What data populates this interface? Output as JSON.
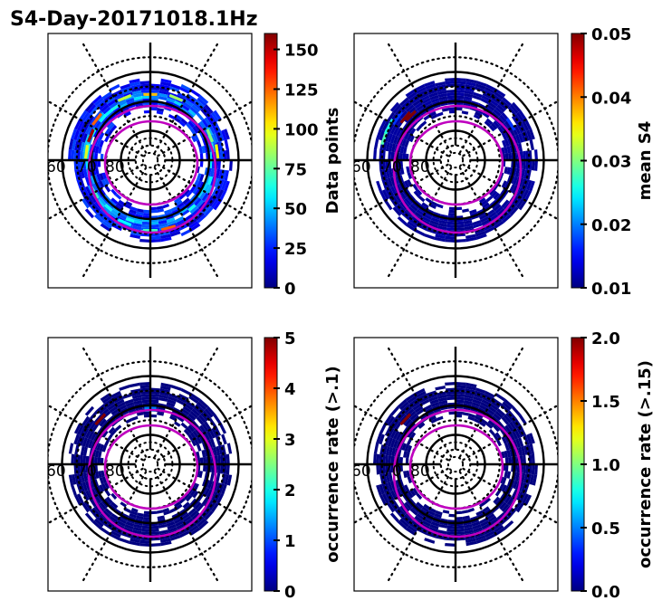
{
  "figure": {
    "title": "S4-Day-20171018.1Hz"
  },
  "chart_data": [
    {
      "type": "heatmap",
      "projection": "polar-magnetic-latitude",
      "panel": "top-left",
      "title": "",
      "colorbar": {
        "label": "Data points",
        "range": [
          0,
          160
        ],
        "ticks": [
          0,
          25,
          50,
          75,
          100,
          125,
          150
        ],
        "tick_labels": [
          "0",
          "25",
          "50",
          "75",
          "100",
          "125",
          "150"
        ],
        "colormap": "jet"
      },
      "lat_labels": [
        "60",
        "70",
        "80"
      ],
      "lat_rings_solid": [
        60,
        70,
        80
      ],
      "lat_rings_dotted": [
        55,
        65,
        75,
        85
      ],
      "spokes_deg": [
        0,
        30,
        60,
        90,
        120,
        150,
        180,
        210,
        240,
        270,
        300,
        330
      ],
      "band": {
        "lat_min": 62,
        "lat_max": 74,
        "typical_value": 30,
        "peak_value": 150
      },
      "highlights": [
        {
          "mlt": 12,
          "lat": 67.5,
          "value": 110
        },
        {
          "mlt": 10.5,
          "lat": 67,
          "value": 85
        },
        {
          "mlt": 13.5,
          "lat": 67,
          "value": 90
        },
        {
          "mlt": 15.5,
          "lat": 67,
          "value": 125
        },
        {
          "mlt": 16.5,
          "lat": 68,
          "value": 155
        },
        {
          "mlt": 17.5,
          "lat": 68,
          "value": 95
        },
        {
          "mlt": 6.5,
          "lat": 67,
          "value": 100
        },
        {
          "mlt": 7.5,
          "lat": 68,
          "value": 80
        },
        {
          "mlt": 1,
          "lat": 66,
          "value": 125
        },
        {
          "mlt": 0,
          "lat": 66,
          "value": 70
        },
        {
          "mlt": 22.5,
          "lat": 67,
          "value": 60
        },
        {
          "mlt": 20,
          "lat": 68,
          "value": 70
        }
      ],
      "ovals": [
        {
          "name": "auroral-oval-inner",
          "color": "#bf00bf"
        },
        {
          "name": "auroral-oval-outer",
          "color": "#bf00bf"
        }
      ]
    },
    {
      "type": "heatmap",
      "projection": "polar-magnetic-latitude",
      "panel": "top-right",
      "colorbar": {
        "label": "mean S4",
        "range": [
          0.01,
          0.05
        ],
        "ticks": [
          0.01,
          0.02,
          0.03,
          0.04,
          0.05
        ],
        "tick_labels": [
          "0.01",
          "0.02",
          "0.03",
          "0.04",
          "0.05"
        ],
        "colormap": "jet"
      },
      "lat_labels": [
        "60",
        "70",
        "80"
      ],
      "band": {
        "lat_min": 62,
        "lat_max": 74,
        "typical_value": 0.01
      },
      "highlights": [
        {
          "mlt": 16.8,
          "lat": 64.5,
          "value": 0.028
        },
        {
          "mlt": 16.2,
          "lat": 64.5,
          "value": 0.026
        },
        {
          "mlt": 15.3,
          "lat": 67.5,
          "value": 0.05
        },
        {
          "mlt": 15.0,
          "lat": 68.5,
          "value": 0.05
        },
        {
          "mlt": 15.6,
          "lat": 65.5,
          "value": 0.017
        },
        {
          "mlt": 8.2,
          "lat": 67.5,
          "value": 0.017
        }
      ]
    },
    {
      "type": "heatmap",
      "projection": "polar-magnetic-latitude",
      "panel": "bottom-left",
      "colorbar": {
        "label": "occurrence rate (>.1)",
        "range": [
          0,
          5
        ],
        "ticks": [
          0,
          1,
          2,
          3,
          4,
          5
        ],
        "tick_labels": [
          "0",
          "1",
          "2",
          "3",
          "4",
          "5"
        ],
        "colormap": "jet"
      },
      "lat_labels": [
        "60",
        "70",
        "80"
      ],
      "band": {
        "lat_min": 62,
        "lat_max": 74,
        "typical_value": 0
      },
      "highlights": [
        {
          "mlt": 12,
          "lat": 70.5,
          "value": 1.2
        },
        {
          "mlt": 12,
          "lat": 71.5,
          "value": 1.6
        },
        {
          "mlt": 15.2,
          "lat": 67,
          "value": 5
        }
      ]
    },
    {
      "type": "heatmap",
      "projection": "polar-magnetic-latitude",
      "panel": "bottom-right",
      "colorbar": {
        "label": "occurrence rate (>.15)",
        "range": [
          0,
          2
        ],
        "ticks": [
          0,
          0.5,
          1,
          1.5,
          2
        ],
        "tick_labels": [
          "0.0",
          "0.5",
          "1.0",
          "1.5",
          "2.0"
        ],
        "colormap": "jet"
      },
      "lat_labels": [
        "60",
        "70",
        "80"
      ],
      "band": {
        "lat_min": 62,
        "lat_max": 74,
        "typical_value": 0
      },
      "highlights": [
        {
          "mlt": 15.2,
          "lat": 67,
          "value": 2
        }
      ]
    }
  ]
}
